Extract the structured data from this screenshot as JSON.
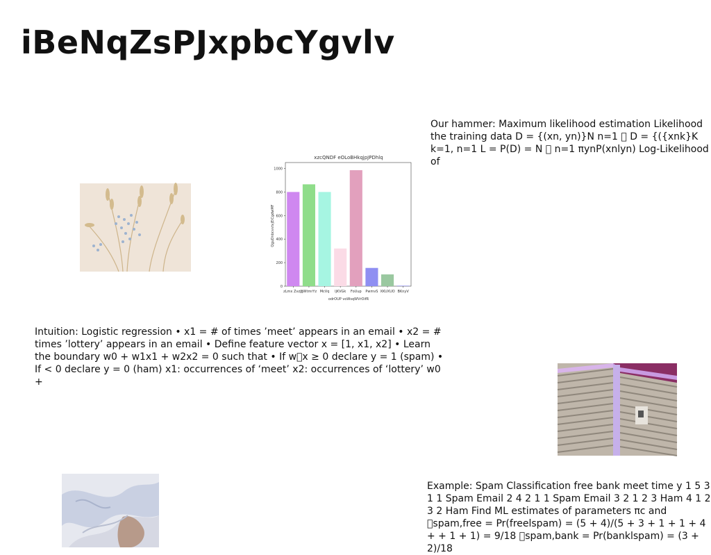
{
  "slide": {
    "title": "iBeNqZsPJxpbcYgvlv",
    "text_blocks": {
      "hammer": "Our hammer: Maximum likelihood estimation Likelihood the training data D = {(xn, yn)}N n=1 \u0000 D = {({xnk}K k=1, n=1 L = P(D) = N \u0000 n=1 πynP(xnlyn) Log-Likelihood of",
      "intuition": "Intuition: Logistic regression • x1 = # of times ’meet’ appears in an email • x2 = # times ’lottery’ appears in an email • Define feature vector x = [1, x1, x2] • Learn the boundary w0 + w1x1 + w2x2 = 0 such that • If w\u0000x ≥ 0 declare y = 1 (spam) • If < 0 declare y = 0 (ham) x1: occurrences of ‘meet’ x2: occurrences of ‘lottery’ w0 +",
      "example": "Example: Spam Classification free bank meet time y 1 5 3 1 1 Spam Email 2 4 2 1 1 Spam Email 3 2 1 2 3 Ham 4 1 2 3 2 Ham Find ML estimates of parameters πc and \u0000spam,free = Pr(freelspam) = (5 + 4)/(5 + 3 + 1 + 1 + 4 + + 1 + 1) = 9/18 \u0000spam,bank = Pr(banklspam) = (3 + 2)/18"
    },
    "images": {
      "flowers": "dried-flowers-photo",
      "building": "building-corner-photo",
      "fabric": "draped-fabric-photo"
    }
  },
  "chart_data": {
    "type": "bar",
    "title": "xzcQNDF eOLoBHkqjpJPDhlq",
    "xlabel": "odrOUP voWsqWVrOifR",
    "ylabel": "QguDnbcvvtvjEiCgdwMF",
    "categories": [
      "zLmx Zvzjh",
      "jjWtmrYz",
      "McVq",
      "ljKVGk",
      "FoUup",
      "PwmvS",
      "XKUXUO",
      "BKnyV"
    ],
    "values": [
      800,
      865,
      800,
      320,
      985,
      155,
      100,
      5
    ],
    "colors": [
      "#cf88f0",
      "#8fdd8a",
      "#a6f5e2",
      "#fbdbe6",
      "#e2a0bd",
      "#8f8ff2",
      "#9ac8a0",
      "#a6a6f0"
    ],
    "ylim": [
      0,
      1050
    ],
    "yticks": [
      0,
      200,
      400,
      600,
      800,
      1000
    ],
    "grid": false,
    "legend": false
  }
}
